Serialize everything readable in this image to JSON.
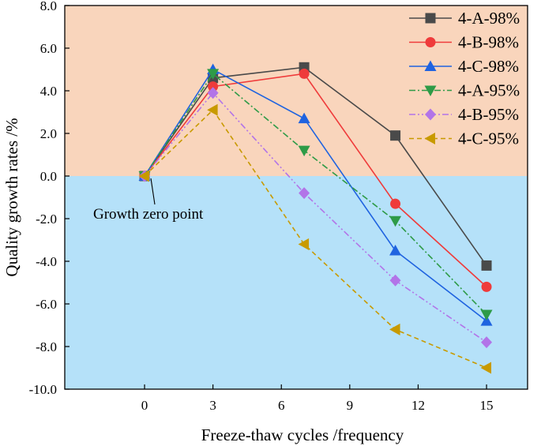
{
  "chart_data": {
    "type": "line",
    "title": "",
    "xlabel": "Freeze-thaw cycles /frequency",
    "ylabel": "Quality growth rates /%",
    "xlim": [
      -3.5,
      16.8
    ],
    "ylim": [
      -10,
      8
    ],
    "xticks": [
      0,
      3,
      6,
      9,
      12,
      15
    ],
    "xtick_labels": [
      "0",
      "3",
      "6",
      "9",
      "12",
      "15"
    ],
    "yticks": [
      8,
      6,
      4,
      2,
      0,
      -2,
      -4,
      -6,
      -8,
      -10
    ],
    "ytick_labels": [
      "8.0",
      "6.0",
      "4.0",
      "2.0",
      "0.0",
      "-2.0",
      "-4.0",
      "-6.0",
      "-8.0",
      "-10.0"
    ],
    "grid": false,
    "legend_position": "top-right",
    "background_regions": [
      {
        "name": "positive",
        "from": 0,
        "to": 8,
        "color": "#F9D5BC"
      },
      {
        "name": "negative",
        "from": -10,
        "to": 0,
        "color": "#B5E1F9"
      }
    ],
    "x": [
      0,
      3,
      7,
      11,
      15
    ],
    "series": [
      {
        "name": "4-A-98%",
        "values": [
          0,
          4.6,
          5.1,
          1.9,
          -4.2
        ],
        "color": "#4a4a4a",
        "marker": "square",
        "dash": "solid"
      },
      {
        "name": "4-B-98%",
        "values": [
          0,
          4.2,
          4.8,
          -1.3,
          -5.2
        ],
        "color": "#ef3b3b",
        "marker": "circle",
        "dash": "solid"
      },
      {
        "name": "4-C-98%",
        "values": [
          0,
          5.0,
          2.7,
          -3.5,
          -6.8
        ],
        "color": "#1f63e0",
        "marker": "triangle-up",
        "dash": "solid"
      },
      {
        "name": "4-A-95%",
        "values": [
          0,
          4.8,
          1.2,
          -2.1,
          -6.5
        ],
        "color": "#2e9b47",
        "marker": "triangle-down",
        "dash": "dashdot"
      },
      {
        "name": "4-B-95%",
        "values": [
          0,
          3.9,
          -0.8,
          -4.9,
          -7.8
        ],
        "color": "#b274e8",
        "marker": "diamond",
        "dash": "dashdotdot"
      },
      {
        "name": "4-C-95%",
        "values": [
          0,
          3.1,
          -3.2,
          -7.2,
          -9.0
        ],
        "color": "#c89a00",
        "marker": "triangle-left",
        "dash": "dashed"
      }
    ],
    "annotations": [
      {
        "text": "Growth zero point",
        "x": 0,
        "y": 0
      }
    ]
  }
}
